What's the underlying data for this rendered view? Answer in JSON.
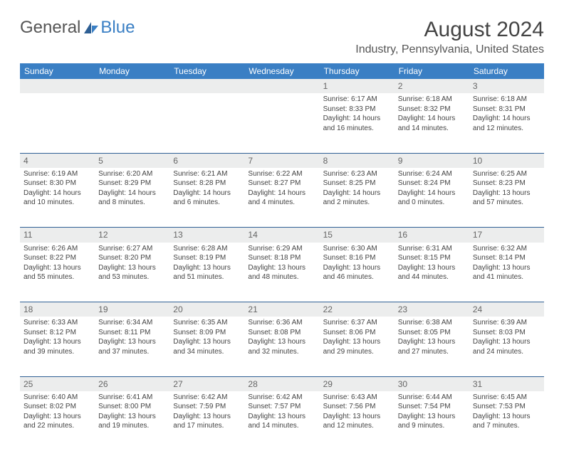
{
  "brand": {
    "name1": "General",
    "name2": "Blue"
  },
  "title": "August 2024",
  "location": "Industry, Pennsylvania, United States",
  "colors": {
    "header_bg": "#3a7fc4",
    "header_text": "#ffffff",
    "daynum_bg": "#eceded",
    "sep_border": "#2e5f94",
    "body_text": "#444444",
    "title_text": "#444444",
    "location_text": "#555555"
  },
  "dayHeaders": [
    "Sunday",
    "Monday",
    "Tuesday",
    "Wednesday",
    "Thursday",
    "Friday",
    "Saturday"
  ],
  "weeks": [
    {
      "nums": [
        "",
        "",
        "",
        "",
        "1",
        "2",
        "3"
      ],
      "cells": [
        null,
        null,
        null,
        null,
        {
          "sunrise": "6:17 AM",
          "sunset": "8:33 PM",
          "daylight": "14 hours and 16 minutes."
        },
        {
          "sunrise": "6:18 AM",
          "sunset": "8:32 PM",
          "daylight": "14 hours and 14 minutes."
        },
        {
          "sunrise": "6:18 AM",
          "sunset": "8:31 PM",
          "daylight": "14 hours and 12 minutes."
        }
      ]
    },
    {
      "nums": [
        "4",
        "5",
        "6",
        "7",
        "8",
        "9",
        "10"
      ],
      "cells": [
        {
          "sunrise": "6:19 AM",
          "sunset": "8:30 PM",
          "daylight": "14 hours and 10 minutes."
        },
        {
          "sunrise": "6:20 AM",
          "sunset": "8:29 PM",
          "daylight": "14 hours and 8 minutes."
        },
        {
          "sunrise": "6:21 AM",
          "sunset": "8:28 PM",
          "daylight": "14 hours and 6 minutes."
        },
        {
          "sunrise": "6:22 AM",
          "sunset": "8:27 PM",
          "daylight": "14 hours and 4 minutes."
        },
        {
          "sunrise": "6:23 AM",
          "sunset": "8:25 PM",
          "daylight": "14 hours and 2 minutes."
        },
        {
          "sunrise": "6:24 AM",
          "sunset": "8:24 PM",
          "daylight": "14 hours and 0 minutes."
        },
        {
          "sunrise": "6:25 AM",
          "sunset": "8:23 PM",
          "daylight": "13 hours and 57 minutes."
        }
      ]
    },
    {
      "nums": [
        "11",
        "12",
        "13",
        "14",
        "15",
        "16",
        "17"
      ],
      "cells": [
        {
          "sunrise": "6:26 AM",
          "sunset": "8:22 PM",
          "daylight": "13 hours and 55 minutes."
        },
        {
          "sunrise": "6:27 AM",
          "sunset": "8:20 PM",
          "daylight": "13 hours and 53 minutes."
        },
        {
          "sunrise": "6:28 AM",
          "sunset": "8:19 PM",
          "daylight": "13 hours and 51 minutes."
        },
        {
          "sunrise": "6:29 AM",
          "sunset": "8:18 PM",
          "daylight": "13 hours and 48 minutes."
        },
        {
          "sunrise": "6:30 AM",
          "sunset": "8:16 PM",
          "daylight": "13 hours and 46 minutes."
        },
        {
          "sunrise": "6:31 AM",
          "sunset": "8:15 PM",
          "daylight": "13 hours and 44 minutes."
        },
        {
          "sunrise": "6:32 AM",
          "sunset": "8:14 PM",
          "daylight": "13 hours and 41 minutes."
        }
      ]
    },
    {
      "nums": [
        "18",
        "19",
        "20",
        "21",
        "22",
        "23",
        "24"
      ],
      "cells": [
        {
          "sunrise": "6:33 AM",
          "sunset": "8:12 PM",
          "daylight": "13 hours and 39 minutes."
        },
        {
          "sunrise": "6:34 AM",
          "sunset": "8:11 PM",
          "daylight": "13 hours and 37 minutes."
        },
        {
          "sunrise": "6:35 AM",
          "sunset": "8:09 PM",
          "daylight": "13 hours and 34 minutes."
        },
        {
          "sunrise": "6:36 AM",
          "sunset": "8:08 PM",
          "daylight": "13 hours and 32 minutes."
        },
        {
          "sunrise": "6:37 AM",
          "sunset": "8:06 PM",
          "daylight": "13 hours and 29 minutes."
        },
        {
          "sunrise": "6:38 AM",
          "sunset": "8:05 PM",
          "daylight": "13 hours and 27 minutes."
        },
        {
          "sunrise": "6:39 AM",
          "sunset": "8:03 PM",
          "daylight": "13 hours and 24 minutes."
        }
      ]
    },
    {
      "nums": [
        "25",
        "26",
        "27",
        "28",
        "29",
        "30",
        "31"
      ],
      "cells": [
        {
          "sunrise": "6:40 AM",
          "sunset": "8:02 PM",
          "daylight": "13 hours and 22 minutes."
        },
        {
          "sunrise": "6:41 AM",
          "sunset": "8:00 PM",
          "daylight": "13 hours and 19 minutes."
        },
        {
          "sunrise": "6:42 AM",
          "sunset": "7:59 PM",
          "daylight": "13 hours and 17 minutes."
        },
        {
          "sunrise": "6:42 AM",
          "sunset": "7:57 PM",
          "daylight": "13 hours and 14 minutes."
        },
        {
          "sunrise": "6:43 AM",
          "sunset": "7:56 PM",
          "daylight": "13 hours and 12 minutes."
        },
        {
          "sunrise": "6:44 AM",
          "sunset": "7:54 PM",
          "daylight": "13 hours and 9 minutes."
        },
        {
          "sunrise": "6:45 AM",
          "sunset": "7:53 PM",
          "daylight": "13 hours and 7 minutes."
        }
      ]
    }
  ],
  "labels": {
    "sunrise": "Sunrise:",
    "sunset": "Sunset:",
    "daylight": "Daylight:"
  }
}
